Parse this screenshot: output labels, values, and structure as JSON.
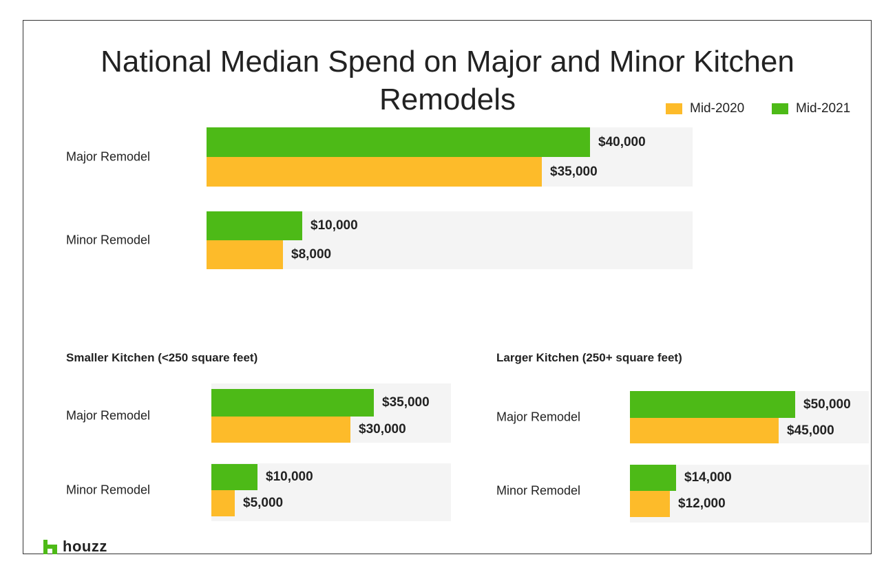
{
  "colors": {
    "mid2020": "#FDBB2A",
    "mid2021": "#4DBA17",
    "track": "#F4F4F4",
    "logo": "#4DBA17"
  },
  "logo": {
    "icon": "houzz-h-icon",
    "text": "houzz"
  },
  "chart_data": [
    {
      "type": "bar",
      "orientation": "horizontal",
      "title": "National Median Spend on Major and Minor Kitchen Remodels",
      "legend": {
        "position": "top-right",
        "entries": [
          "Mid-2020",
          "Mid-2021"
        ]
      },
      "categories": [
        "Major Remodel",
        "Minor Remodel"
      ],
      "series": [
        {
          "name": "Mid-2021",
          "values": [
            40000,
            10000
          ],
          "labels": [
            "$40,000",
            "$10,000"
          ]
        },
        {
          "name": "Mid-2020",
          "values": [
            35000,
            8000
          ],
          "labels": [
            "$35,000",
            "$8,000"
          ]
        }
      ],
      "xlabel": "",
      "ylabel": "",
      "grid": false
    },
    {
      "type": "bar",
      "orientation": "horizontal",
      "title": "Smaller Kitchen (<250 square feet)",
      "categories": [
        "Major Remodel",
        "Minor Remodel"
      ],
      "series": [
        {
          "name": "Mid-2021",
          "values": [
            35000,
            10000
          ],
          "labels": [
            "$35,000",
            "$10,000"
          ]
        },
        {
          "name": "Mid-2020",
          "values": [
            30000,
            5000
          ],
          "labels": [
            "$30,000",
            "$5,000"
          ]
        }
      ],
      "xlabel": "",
      "ylabel": "",
      "grid": false
    },
    {
      "type": "bar",
      "orientation": "horizontal",
      "title": "Larger Kitchen (250+ square feet)",
      "categories": [
        "Major Remodel",
        "Minor Remodel"
      ],
      "series": [
        {
          "name": "Mid-2021",
          "values": [
            50000,
            14000
          ],
          "labels": [
            "$50,000",
            "$14,000"
          ]
        },
        {
          "name": "Mid-2020",
          "values": [
            45000,
            12000
          ],
          "labels": [
            "$45,000",
            "$12,000"
          ]
        }
      ],
      "xlabel": "",
      "ylabel": "",
      "grid": false
    }
  ]
}
